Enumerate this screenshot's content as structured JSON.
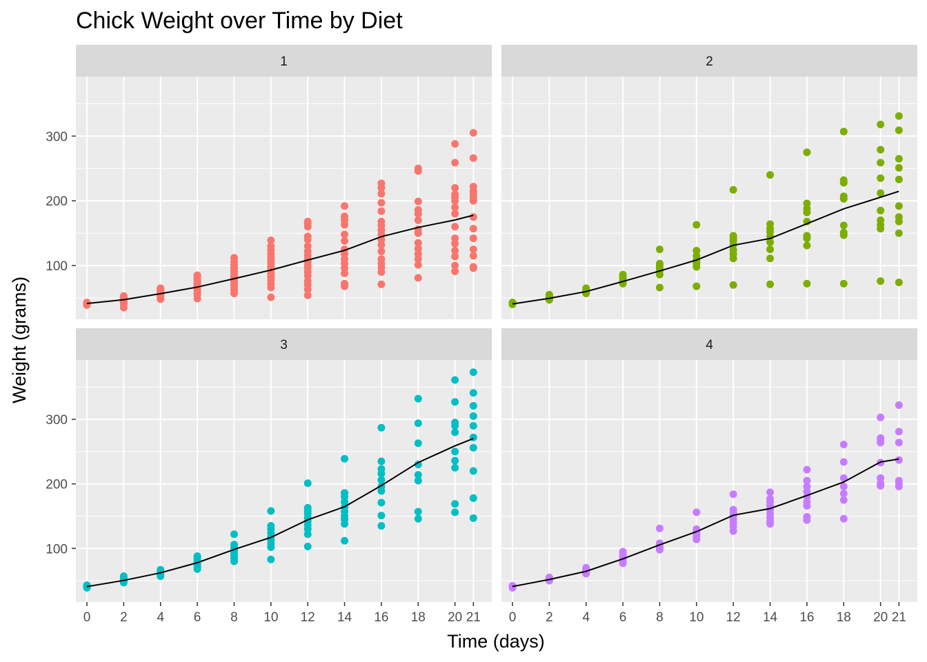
{
  "chart_data": {
    "type": "scatter",
    "title": "Chick Weight over Time by Diet",
    "xlabel": "Time (days)",
    "ylabel": "Weight (grams)",
    "x_ticks": [
      0,
      2,
      4,
      6,
      8,
      10,
      12,
      14,
      16,
      18,
      20,
      21
    ],
    "y_ticks": [
      100,
      200,
      300
    ],
    "xlim": [
      -0.6,
      22
    ],
    "ylim": [
      17,
      392
    ],
    "grid": true,
    "line_color": "#000000",
    "panel_background": "#ebebeb",
    "strip_background": "#d9d9d9",
    "facets": [
      {
        "label": "1",
        "color": "#F8766D",
        "points": {
          "0": [
            39,
            41,
            41,
            42,
            43,
            40,
            42,
            41,
            42,
            41
          ],
          "2": [
            35,
            40,
            42,
            44,
            46,
            48,
            49,
            50,
            51,
            52,
            53,
            49
          ],
          "4": [
            48,
            51,
            53,
            55,
            56,
            57,
            59,
            60,
            62,
            64,
            65
          ],
          "6": [
            49,
            55,
            58,
            62,
            65,
            67,
            70,
            72,
            75,
            78,
            80,
            83,
            85
          ],
          "8": [
            57,
            62,
            66,
            70,
            74,
            77,
            80,
            83,
            86,
            90,
            93,
            97,
            101,
            106,
            112
          ],
          "10": [
            51,
            66,
            72,
            78,
            83,
            88,
            93,
            98,
            103,
            108,
            113,
            118,
            124,
            130,
            139
          ],
          "12": [
            54,
            63,
            70,
            76,
            84,
            90,
            96,
            100,
            106,
            110,
            116,
            122,
            130,
            140,
            145,
            160,
            165,
            168
          ],
          "14": [
            68,
            72,
            88,
            96,
            103,
            110,
            118,
            125,
            138,
            148,
            163,
            170,
            176,
            192
          ],
          "16": [
            71,
            90,
            97,
            103,
            110,
            122,
            132,
            140,
            148,
            155,
            162,
            168,
            184,
            197,
            211,
            220,
            227
          ],
          "18": [
            81,
            101,
            110,
            118,
            126,
            135,
            150,
            156,
            170,
            180,
            186,
            199,
            246,
            250
          ],
          "20": [
            91,
            100,
            114,
            123,
            134,
            142,
            160,
            180,
            190,
            200,
            205,
            210,
            220,
            259,
            288
          ],
          "21": [
            96,
            98,
            115,
            125,
            142,
            157,
            175,
            200,
            205,
            210,
            215,
            222,
            266,
            305
          ]
        },
        "mean": [
          41.4,
          47.25,
          56.5,
          66.8,
          79.7,
          93.1,
          108.5,
          123.4,
          144.6,
          158.9,
          170.4,
          177.8
        ]
      },
      {
        "label": "2",
        "color": "#7CAE00",
        "points": {
          "0": [
            40,
            41,
            42,
            43
          ],
          "2": [
            47,
            49,
            50,
            51,
            53,
            55
          ],
          "4": [
            57,
            58,
            59,
            61,
            62,
            65
          ],
          "6": [
            72,
            74,
            76,
            80,
            84,
            86
          ],
          "8": [
            66,
            86,
            92,
            96,
            100,
            103,
            125
          ],
          "10": [
            68,
            98,
            103,
            108,
            115,
            123,
            163
          ],
          "12": [
            70,
            111,
            118,
            124,
            132,
            138,
            142,
            146,
            217
          ],
          "14": [
            71,
            111,
            125,
            136,
            145,
            152,
            157,
            164,
            240
          ],
          "16": [
            72,
            131,
            142,
            146,
            168,
            182,
            188,
            196,
            275
          ],
          "18": [
            72,
            147,
            151,
            162,
            203,
            207,
            228,
            232,
            307
          ],
          "20": [
            76,
            157,
            163,
            170,
            185,
            212,
            235,
            259,
            279,
            318
          ],
          "21": [
            74,
            150,
            168,
            175,
            192,
            233,
            251,
            265,
            309,
            331
          ]
        },
        "mean": [
          40.7,
          49.4,
          59.8,
          75.4,
          91.7,
          108.5,
          131.3,
          141.9,
          164.7,
          187.7,
          205.6,
          214.7
        ]
      },
      {
        "label": "3",
        "color": "#00BFC4",
        "points": {
          "0": [
            39,
            40,
            41,
            42,
            43
          ],
          "2": [
            47,
            49,
            50,
            52,
            53,
            55,
            57
          ],
          "4": [
            57,
            59,
            61,
            63,
            65,
            67
          ],
          "6": [
            68,
            71,
            74,
            77,
            80,
            83,
            86,
            88
          ],
          "8": [
            80,
            85,
            89,
            93,
            97,
            101,
            106,
            122
          ],
          "10": [
            83,
            102,
            107,
            113,
            118,
            124,
            130,
            135,
            158
          ],
          "12": [
            103,
            122,
            130,
            136,
            142,
            148,
            154,
            158,
            163,
            201
          ],
          "14": [
            112,
            138,
            145,
            150,
            157,
            164,
            172,
            180,
            186,
            239
          ],
          "16": [
            135,
            151,
            171,
            189,
            196,
            206,
            216,
            223,
            235,
            287
          ],
          "18": [
            146,
            157,
            205,
            214,
            230,
            263,
            294,
            332
          ],
          "20": [
            156,
            169,
            225,
            236,
            250,
            280,
            290,
            295,
            327,
            361
          ],
          "21": [
            147,
            178,
            220,
            256,
            272,
            290,
            305,
            321,
            341,
            373
          ]
        },
        "mean": [
          40.8,
          50.4,
          62.2,
          77.9,
          98.4,
          117.1,
          144.4,
          164.5,
          197.4,
          233.1,
          258.9,
          270.3
        ]
      },
      {
        "label": "4",
        "color": "#C77CFF",
        "points": {
          "0": [
            39,
            40,
            41,
            42
          ],
          "2": [
            50,
            51,
            52,
            53,
            54,
            55
          ],
          "4": [
            61,
            63,
            64,
            65,
            67,
            69,
            70
          ],
          "6": [
            77,
            79,
            82,
            84,
            87,
            91,
            95
          ],
          "8": [
            98,
            101,
            103,
            106,
            108,
            131
          ],
          "10": [
            114,
            118,
            121,
            124,
            127,
            130,
            156
          ],
          "12": [
            127,
            134,
            140,
            145,
            150,
            155,
            160,
            184
          ],
          "14": [
            138,
            142,
            148,
            154,
            160,
            166,
            172,
            177,
            187
          ],
          "16": [
            144,
            149,
            166,
            172,
            180,
            188,
            196,
            205,
            222
          ],
          "18": [
            146,
            175,
            185,
            196,
            209,
            234,
            261
          ],
          "20": [
            197,
            201,
            209,
            233,
            264,
            268,
            271,
            303
          ],
          "21": [
            196,
            200,
            205,
            237,
            264,
            281,
            322
          ]
        },
        "mean": [
          41.0,
          51.8,
          64.5,
          83.9,
          105.6,
          126.0,
          151.4,
          161.8,
          182.0,
          202.9,
          233.9,
          238.6
        ]
      }
    ]
  }
}
